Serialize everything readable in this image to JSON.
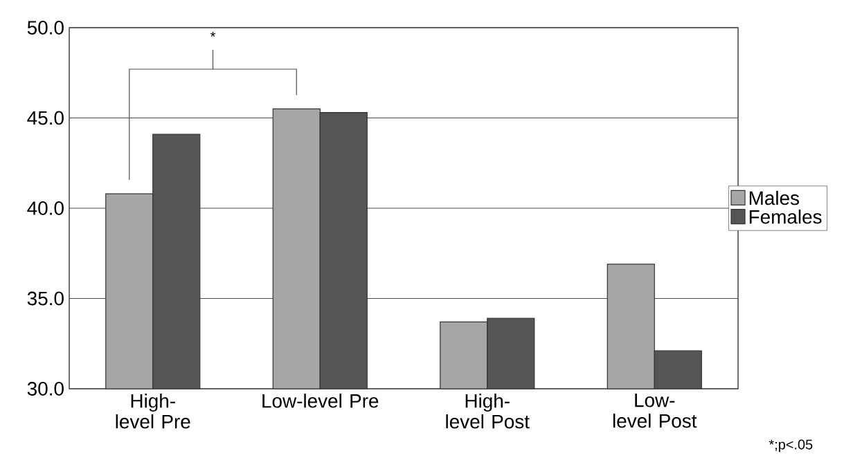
{
  "chart_data": {
    "type": "bar",
    "categories": [
      "High-level Pre",
      "Low-level Pre",
      "High-level Post",
      "Low-level Post"
    ],
    "series": [
      {
        "name": "Males",
        "color": "#a6a6a6",
        "values": [
          40.8,
          45.5,
          33.7,
          36.9
        ]
      },
      {
        "name": "Females",
        "color": "#555555",
        "values": [
          44.1,
          45.3,
          33.9,
          32.1
        ]
      }
    ],
    "ylim": [
      30,
      50
    ],
    "yticks": [
      {
        "value": 30,
        "label": "30.0"
      },
      {
        "value": 35,
        "label": "35.0"
      },
      {
        "value": 40,
        "label": "40.0"
      },
      {
        "value": 45,
        "label": "45.0"
      },
      {
        "value": 50,
        "label": "50.0"
      }
    ],
    "grid": "y",
    "legend": "right",
    "annotations": [
      "*",
      "*;p<.05"
    ]
  }
}
